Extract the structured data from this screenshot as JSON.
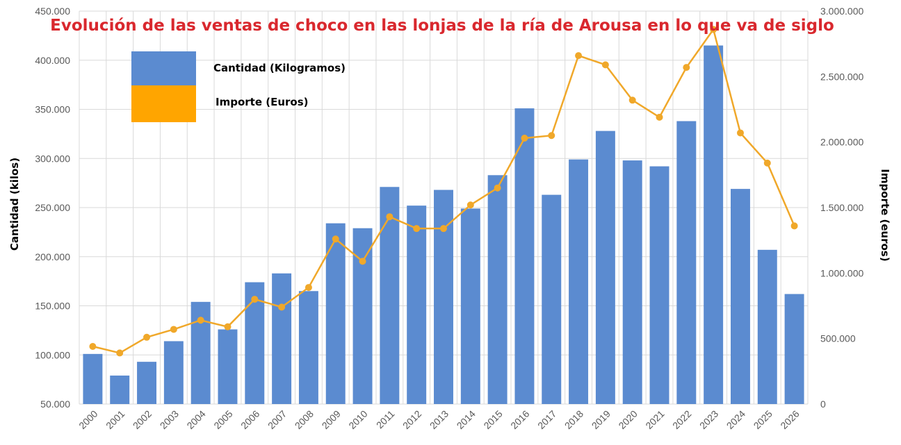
{
  "chart_data": {
    "type": "bar",
    "title": "Evolución de las ventas de choco en las lonjas de la ría de Arousa en lo que va de siglo",
    "ylabel": "Cantidad (kilos)",
    "y2label": "Importe (euros)",
    "ylim": [
      50000,
      450000
    ],
    "y2lim": [
      0,
      3000000
    ],
    "yticks": [
      "50.000",
      "100.000",
      "150.000",
      "200.000",
      "250.000",
      "300.000",
      "350.000",
      "400.000",
      "450.000"
    ],
    "y2ticks": [
      "0",
      "500.000",
      "1.000.000",
      "1.500.000",
      "2.000.000",
      "2.500.000",
      "3.000.000"
    ],
    "grid": true,
    "legend_position": "top-left",
    "categories": [
      "2000",
      "2001",
      "2002",
      "2003",
      "2004",
      "2005",
      "2006",
      "2007",
      "2008",
      "2009",
      "2010",
      "2011",
      "2012",
      "2013",
      "2014",
      "2015",
      "2016",
      "2017",
      "2018",
      "2019",
      "2020",
      "2021",
      "2022",
      "2023",
      "2024",
      "2025",
      "2026"
    ],
    "series": [
      {
        "name": "Cantidad (Kilogramos)",
        "type": "bar",
        "axis": "left",
        "color": "#5B8BD0",
        "values": [
          101000,
          79000,
          93000,
          114000,
          154000,
          126000,
          174000,
          183000,
          165000,
          234000,
          229000,
          271000,
          252000,
          268000,
          249000,
          283000,
          351000,
          263000,
          299000,
          328000,
          298000,
          292000,
          338000,
          415000,
          269000,
          207000,
          162000
        ]
      },
      {
        "name": "Importe (Euros)",
        "type": "line",
        "axis": "right",
        "color": "#F0A82A",
        "values": [
          440000,
          390000,
          510000,
          570000,
          640000,
          590000,
          800000,
          740000,
          890000,
          1260000,
          1090000,
          1430000,
          1340000,
          1340000,
          1520000,
          1650000,
          2030000,
          2050000,
          2660000,
          2590000,
          2320000,
          2190000,
          2570000,
          2860000,
          2070000,
          1840000,
          1360000
        ]
      }
    ]
  },
  "colors": {
    "title": "#D9282E",
    "grid": "#D9D9D9"
  }
}
